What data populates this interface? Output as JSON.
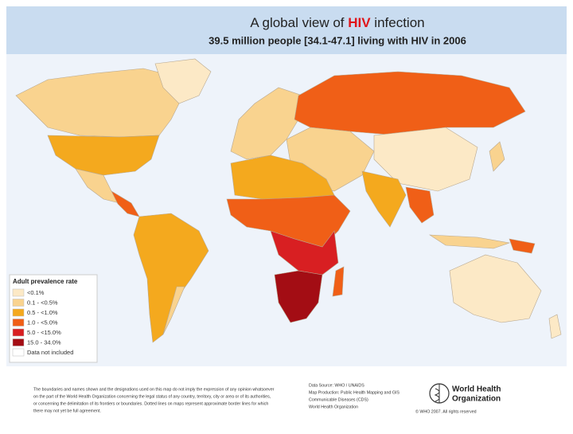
{
  "header": {
    "title_parts": [
      "A global view of ",
      "HIV",
      " infection"
    ],
    "subtitle": "39.5 million people [34.1-47.1] living with HIV in 2006"
  },
  "legend": {
    "title": "Adult prevalence rate",
    "items": [
      {
        "label": "<0.1%",
        "color": "#fce9c6"
      },
      {
        "label": "0.1 - <0.5%",
        "color": "#f9d38f"
      },
      {
        "label": "0.5 - <1.0%",
        "color": "#f4a91e"
      },
      {
        "label": "1.0 - <5.0%",
        "color": "#f05f17"
      },
      {
        "label": "5.0 - <15.0%",
        "color": "#d81f22"
      },
      {
        "label": "15.0 - 34.0%",
        "color": "#a30d14"
      },
      {
        "label": "Data not included",
        "color": "#ffffff"
      }
    ]
  },
  "footer": {
    "disclaimer": [
      "The boundaries and names shown and the designations used on this map do not imply the expression of any opinion whatsoever",
      "on the part of the World Health Organization concerning the legal status of any country, territory, city or area or of its authorities,",
      "or concerning the delimitation of its frontiers or boundaries. Dotted lines on maps represent approximate border lines for which",
      "there may not yet be full agreement."
    ],
    "source": [
      "Data Source: WHO / UNAIDS",
      "Map Production: Public Health Mapping and GIS",
      "Communicable Diseases (CDS)",
      "World Health Organization"
    ],
    "organization": [
      "World Health",
      "Organization"
    ],
    "copyright": "© WHO 2007. All rights reserved"
  }
}
